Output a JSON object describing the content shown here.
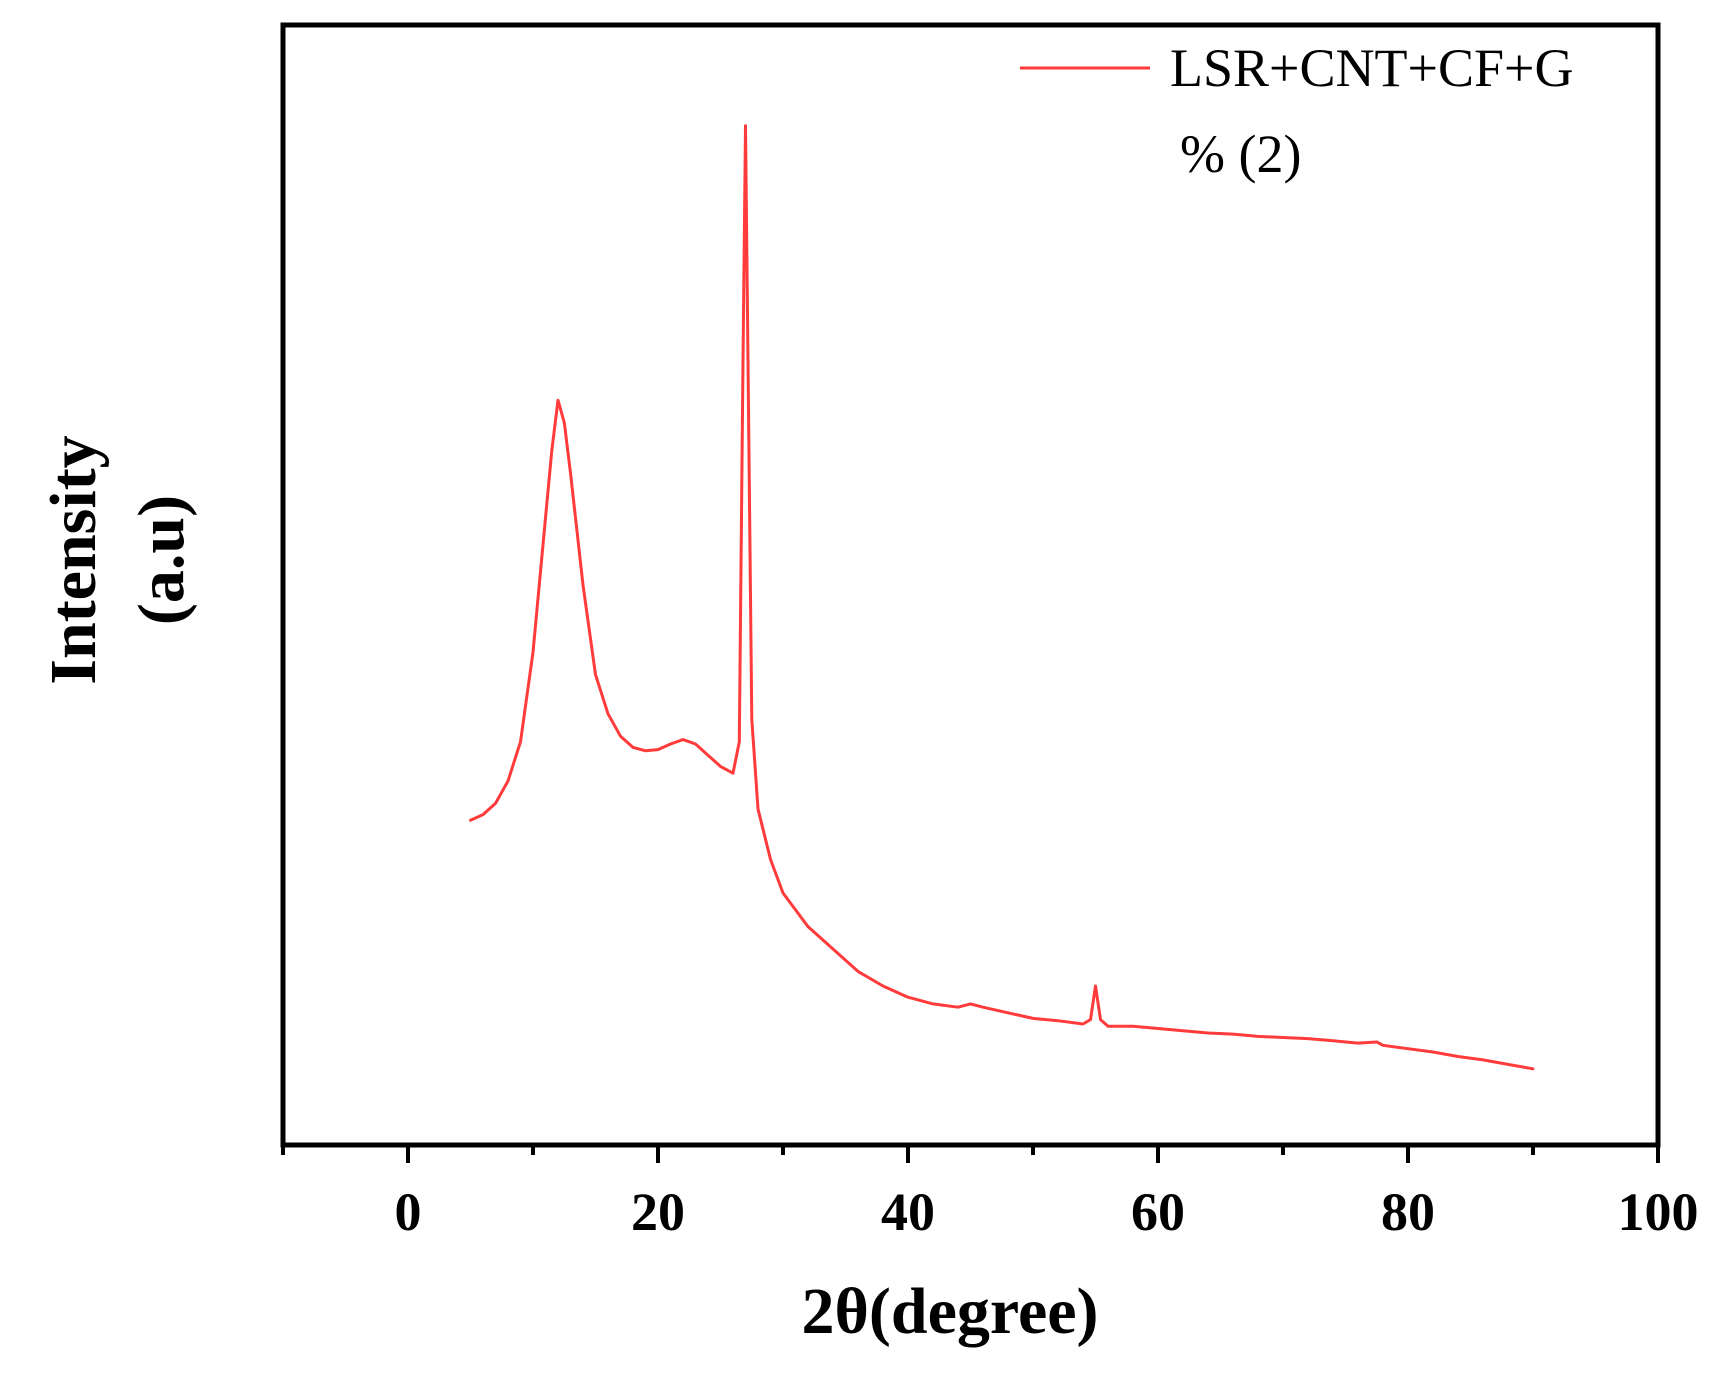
{
  "chart_data": {
    "type": "line",
    "title": "",
    "xlabel": "2θ(degree)",
    "ylabel_line1": "Intensity",
    "ylabel_line2": "(a.u)",
    "xlim": [
      -10,
      100
    ],
    "ylim": [
      0,
      100
    ],
    "x_ticks": [
      0,
      20,
      40,
      60,
      80,
      100
    ],
    "x_tick_labels": [
      "0",
      "20",
      "40",
      "60",
      "80",
      "100"
    ],
    "y_ticks_shown": false,
    "grid": false,
    "legend_position": "top-right",
    "series": [
      {
        "name_line1": "LSR+CNT+CF+G",
        "name_line2": "% (2)",
        "color": "#ff3b3b",
        "points": [
          [
            5,
            29
          ],
          [
            6,
            29.5
          ],
          [
            7,
            30.5
          ],
          [
            8,
            32.5
          ],
          [
            9,
            36
          ],
          [
            10,
            44
          ],
          [
            11,
            56
          ],
          [
            11.5,
            62
          ],
          [
            12,
            66.5
          ],
          [
            12.5,
            64.5
          ],
          [
            13,
            60
          ],
          [
            14,
            50
          ],
          [
            15,
            42
          ],
          [
            16,
            38.5
          ],
          [
            17,
            36.5
          ],
          [
            18,
            35.5
          ],
          [
            19,
            35.2
          ],
          [
            20,
            35.3
          ],
          [
            21,
            35.8
          ],
          [
            22,
            36.2
          ],
          [
            23,
            35.8
          ],
          [
            24,
            34.8
          ],
          [
            25,
            33.8
          ],
          [
            26,
            33.2
          ],
          [
            26.5,
            36
          ],
          [
            26.8,
            70
          ],
          [
            27.0,
            91
          ],
          [
            27.2,
            70
          ],
          [
            27.5,
            38
          ],
          [
            28,
            30
          ],
          [
            29,
            25.5
          ],
          [
            30,
            22.5
          ],
          [
            32,
            19.5
          ],
          [
            34,
            17.5
          ],
          [
            36,
            15.5
          ],
          [
            38,
            14.2
          ],
          [
            40,
            13.2
          ],
          [
            42,
            12.6
          ],
          [
            44,
            12.3
          ],
          [
            45,
            12.6
          ],
          [
            46,
            12.3
          ],
          [
            48,
            11.8
          ],
          [
            50,
            11.3
          ],
          [
            52,
            11.1
          ],
          [
            54,
            10.8
          ],
          [
            54.6,
            11.2
          ],
          [
            55.0,
            14.2
          ],
          [
            55.4,
            11.2
          ],
          [
            56,
            10.6
          ],
          [
            58,
            10.6
          ],
          [
            60,
            10.4
          ],
          [
            62,
            10.2
          ],
          [
            64,
            10.0
          ],
          [
            66,
            9.9
          ],
          [
            68,
            9.7
          ],
          [
            70,
            9.6
          ],
          [
            72,
            9.5
          ],
          [
            74,
            9.3
          ],
          [
            76,
            9.1
          ],
          [
            77.5,
            9.2
          ],
          [
            78,
            8.9
          ],
          [
            80,
            8.6
          ],
          [
            82,
            8.3
          ],
          [
            84,
            7.9
          ],
          [
            86,
            7.6
          ],
          [
            88,
            7.2
          ],
          [
            90,
            6.8
          ]
        ]
      }
    ]
  }
}
